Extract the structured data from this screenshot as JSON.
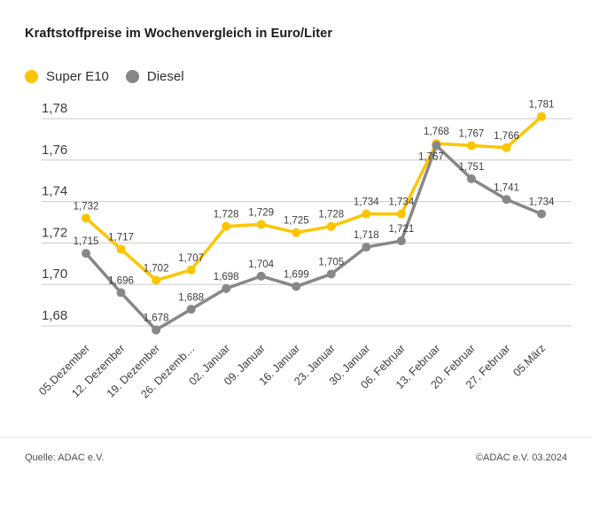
{
  "title": "Kraftstoffpreise im Wochenvergleich in Euro/Liter",
  "legend": {
    "items": [
      {
        "label": "Super E10",
        "color": "#fcc500"
      },
      {
        "label": "Diesel",
        "color": "#878787"
      }
    ]
  },
  "footer": {
    "source": "Quelle: ADAC e.V.",
    "copyright": "©ADAC e.V. 03.2024"
  },
  "chart_data": {
    "type": "line",
    "title": "Kraftstoffpreise im Wochenvergleich in Euro/Liter",
    "xlabel": "",
    "ylabel": "Euro/Liter",
    "categories": [
      "05.Dezember",
      "12. Dezember",
      "19. Dezember",
      "26. Dezemb…",
      "02. Januar",
      "09. Januar",
      "16. Januar",
      "23. Januar",
      "30. Januar",
      "06. Februar",
      "13. Februar",
      "20. Februar",
      "27. Februar",
      "05.März"
    ],
    "series": [
      {
        "name": "Super E10",
        "color": "#fcc500",
        "values": [
          1.732,
          1.717,
          1.702,
          1.707,
          1.728,
          1.729,
          1.725,
          1.728,
          1.734,
          1.734,
          1.768,
          1.767,
          1.766,
          1.781
        ],
        "labels_below": []
      },
      {
        "name": "Diesel",
        "color": "#878787",
        "values": [
          1.715,
          1.696,
          1.678,
          1.688,
          1.698,
          1.704,
          1.699,
          1.705,
          1.718,
          1.721,
          1.767,
          1.751,
          1.741,
          1.734
        ],
        "labels_below": [
          10
        ]
      }
    ],
    "ylim": [
      1.67,
      1.79
    ],
    "yticks": [
      1.78,
      1.76,
      1.74,
      1.72,
      1.7,
      1.68
    ],
    "ytick_labels": [
      "1,78",
      "1,76",
      "1,74",
      "1,72",
      "1,70",
      "1,68"
    ],
    "grid": "horizontal",
    "grid_color": "#cccccc",
    "axis_color": "#3d3d3d",
    "label_color": "#3d3d3d",
    "legend_position": "top-left",
    "decimal_separator": ","
  }
}
